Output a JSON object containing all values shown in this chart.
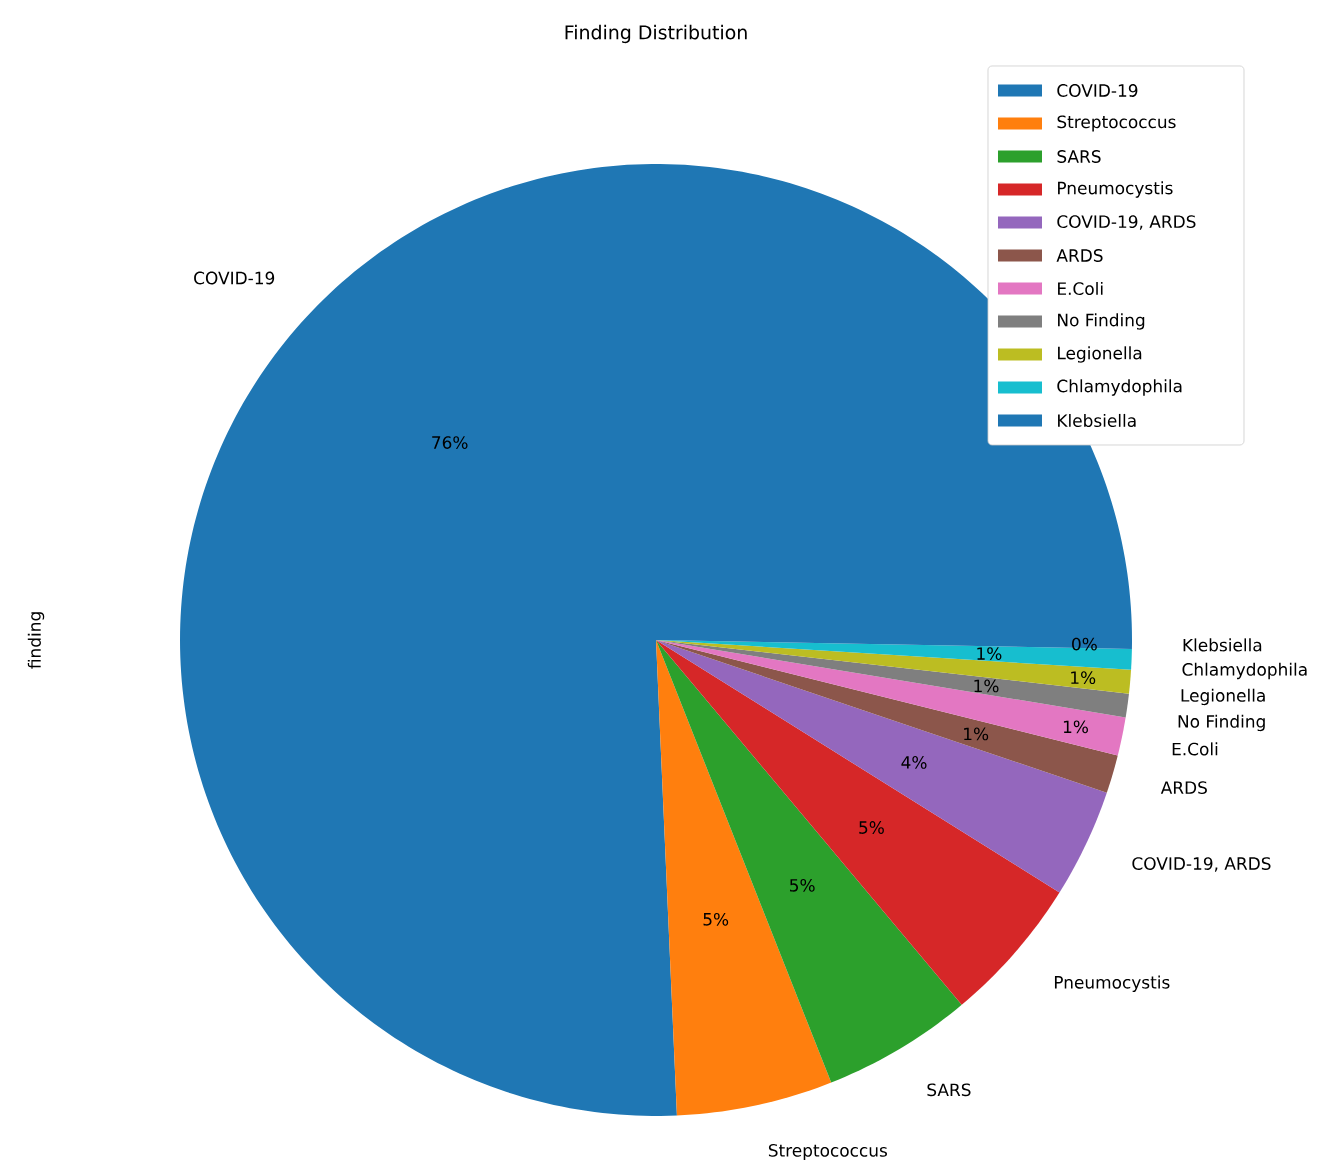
{
  "chart_data": {
    "type": "pie",
    "title": "Finding Distribution",
    "ylabel": "finding",
    "categories": [
      "COVID-19",
      "Streptococcus",
      "SARS",
      "Pneumocystis",
      "COVID-19, ARDS",
      "ARDS",
      "E.Coli",
      "No Finding",
      "Legionella",
      "Chlamydophila",
      "Klebsiella"
    ],
    "values": [
      75.7,
      5.3,
      5.1,
      5.0,
      3.7,
      1.3,
      1.3,
      0.8,
      0.8,
      0.7,
      0.3
    ],
    "value_labels": [
      "76%",
      "5%",
      "5%",
      "5%",
      "4%",
      "1%",
      "1%",
      "1%",
      "1%",
      "1%",
      "0%"
    ],
    "colors": [
      "#1f77b4",
      "#ff7f0e",
      "#2ca02c",
      "#d62728",
      "#9467bd",
      "#8c564b",
      "#e377c2",
      "#7f7f7f",
      "#bcbd22",
      "#17becf",
      "#1f77b4"
    ],
    "legend": "top right"
  }
}
